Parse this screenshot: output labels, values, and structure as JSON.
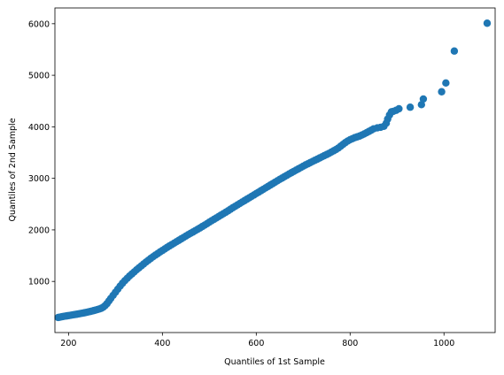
{
  "chart_data": {
    "type": "scatter",
    "title": "",
    "xlabel": "Quantiles of 1st Sample",
    "ylabel": "Quantiles of 2nd Sample",
    "xlim": [
      171,
      1109
    ],
    "ylim": [
      8,
      6306
    ],
    "xticks": [
      200,
      400,
      600,
      800,
      1000
    ],
    "yticks": [
      1000,
      2000,
      3000,
      4000,
      5000,
      6000
    ],
    "grid": false,
    "legend": "none",
    "marker_color": "#1f77b4",
    "series": [
      {
        "points": [
          [
            178,
            300
          ],
          [
            182,
            308
          ],
          [
            186,
            315
          ],
          [
            190,
            322
          ],
          [
            194,
            328
          ],
          [
            198,
            334
          ],
          [
            202,
            340
          ],
          [
            206,
            346
          ],
          [
            210,
            352
          ],
          [
            214,
            358
          ],
          [
            218,
            364
          ],
          [
            222,
            371
          ],
          [
            226,
            378
          ],
          [
            230,
            385
          ],
          [
            234,
            392
          ],
          [
            238,
            400
          ],
          [
            242,
            408
          ],
          [
            246,
            416
          ],
          [
            250,
            425
          ],
          [
            254,
            435
          ],
          [
            258,
            445
          ],
          [
            262,
            455
          ],
          [
            266,
            466
          ],
          [
            270,
            480
          ],
          [
            274,
            500
          ],
          [
            278,
            530
          ],
          [
            282,
            570
          ],
          [
            286,
            620
          ],
          [
            290,
            670
          ],
          [
            295,
            730
          ],
          [
            300,
            790
          ],
          [
            305,
            850
          ],
          [
            310,
            910
          ],
          [
            315,
            965
          ],
          [
            320,
            1015
          ],
          [
            325,
            1060
          ],
          [
            330,
            1105
          ],
          [
            335,
            1145
          ],
          [
            340,
            1185
          ],
          [
            345,
            1225
          ],
          [
            350,
            1263
          ],
          [
            355,
            1300
          ],
          [
            360,
            1338
          ],
          [
            365,
            1375
          ],
          [
            370,
            1410
          ],
          [
            375,
            1445
          ],
          [
            380,
            1478
          ],
          [
            385,
            1510
          ],
          [
            390,
            1540
          ],
          [
            395,
            1572
          ],
          [
            400,
            1600
          ],
          [
            405,
            1630
          ],
          [
            410,
            1660
          ],
          [
            415,
            1688
          ],
          [
            420,
            1715
          ],
          [
            425,
            1742
          ],
          [
            430,
            1770
          ],
          [
            435,
            1797
          ],
          [
            440,
            1825
          ],
          [
            445,
            1852
          ],
          [
            450,
            1880
          ],
          [
            455,
            1907
          ],
          [
            460,
            1933
          ],
          [
            465,
            1958
          ],
          [
            470,
            1985
          ],
          [
            475,
            2010
          ],
          [
            480,
            2037
          ],
          [
            485,
            2065
          ],
          [
            490,
            2092
          ],
          [
            495,
            2120
          ],
          [
            500,
            2150
          ],
          [
            505,
            2178
          ],
          [
            510,
            2205
          ],
          [
            515,
            2232
          ],
          [
            520,
            2260
          ],
          [
            525,
            2288
          ],
          [
            530,
            2315
          ],
          [
            535,
            2342
          ],
          [
            540,
            2370
          ],
          [
            545,
            2400
          ],
          [
            550,
            2430
          ],
          [
            555,
            2457
          ],
          [
            560,
            2485
          ],
          [
            565,
            2512
          ],
          [
            570,
            2540
          ],
          [
            575,
            2567
          ],
          [
            580,
            2595
          ],
          [
            585,
            2622
          ],
          [
            590,
            2650
          ],
          [
            595,
            2677
          ],
          [
            600,
            2705
          ],
          [
            605,
            2732
          ],
          [
            610,
            2760
          ],
          [
            615,
            2787
          ],
          [
            620,
            2815
          ],
          [
            625,
            2842
          ],
          [
            630,
            2870
          ],
          [
            635,
            2897
          ],
          [
            640,
            2925
          ],
          [
            645,
            2952
          ],
          [
            650,
            2980
          ],
          [
            655,
            3005
          ],
          [
            660,
            3032
          ],
          [
            665,
            3058
          ],
          [
            670,
            3085
          ],
          [
            675,
            3110
          ],
          [
            680,
            3135
          ],
          [
            685,
            3160
          ],
          [
            690,
            3185
          ],
          [
            695,
            3210
          ],
          [
            700,
            3235
          ],
          [
            705,
            3260
          ],
          [
            710,
            3282
          ],
          [
            715,
            3305
          ],
          [
            720,
            3328
          ],
          [
            725,
            3350
          ],
          [
            730,
            3372
          ],
          [
            735,
            3395
          ],
          [
            740,
            3418
          ],
          [
            745,
            3440
          ],
          [
            750,
            3462
          ],
          [
            755,
            3485
          ],
          [
            760,
            3510
          ],
          [
            765,
            3535
          ],
          [
            770,
            3560
          ],
          [
            775,
            3590
          ],
          [
            780,
            3625
          ],
          [
            785,
            3660
          ],
          [
            790,
            3695
          ],
          [
            795,
            3725
          ],
          [
            800,
            3750
          ],
          [
            805,
            3770
          ],
          [
            810,
            3790
          ],
          [
            815,
            3805
          ],
          [
            820,
            3820
          ],
          [
            825,
            3840
          ],
          [
            830,
            3862
          ],
          [
            835,
            3885
          ],
          [
            840,
            3910
          ],
          [
            845,
            3935
          ],
          [
            850,
            3960
          ],
          [
            858,
            3980
          ],
          [
            865,
            3990
          ],
          [
            872,
            4010
          ],
          [
            877,
            4070
          ],
          [
            880,
            4150
          ],
          [
            884,
            4230
          ],
          [
            888,
            4290
          ],
          [
            892,
            4300
          ],
          [
            898,
            4320
          ],
          [
            904,
            4350
          ],
          [
            928,
            4380
          ],
          [
            952,
            4430
          ],
          [
            956,
            4540
          ],
          [
            995,
            4680
          ],
          [
            1004,
            4850
          ],
          [
            1022,
            5470
          ],
          [
            1092,
            6010
          ]
        ]
      }
    ]
  }
}
